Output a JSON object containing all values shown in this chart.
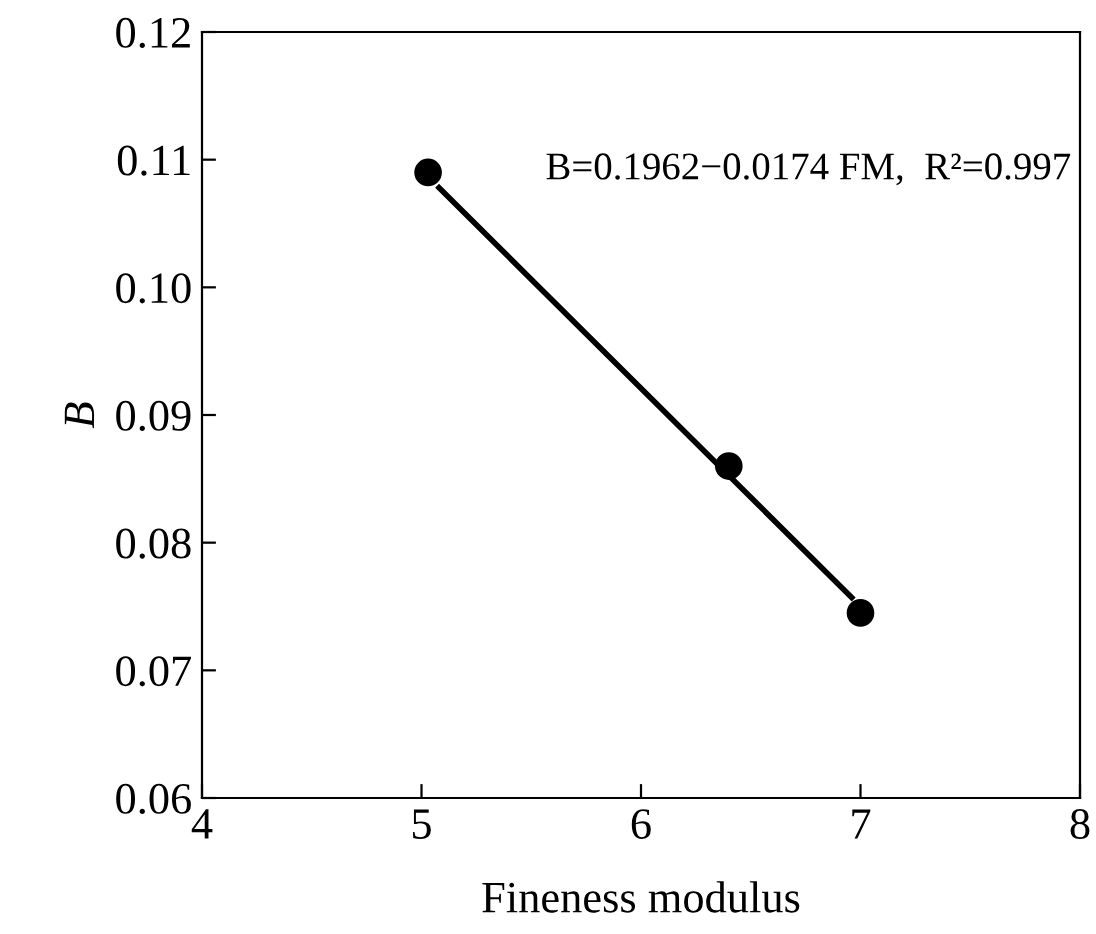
{
  "chart_data": {
    "type": "scatter",
    "xlabel": "Fineness modulus",
    "ylabel": "B",
    "series": [
      {
        "color": "#000000",
        "marker": "circle",
        "x": [
          5.03,
          6.4,
          7.0
        ],
        "values": [
          0.109,
          0.086,
          0.0745
        ]
      },
      {
        "type": "line",
        "color": "#000000",
        "marker": "none",
        "line_style": "solid",
        "x": [
          5.08,
          6.96
        ],
        "values": [
          0.1078,
          0.0757
        ]
      }
    ],
    "annotations": [
      "B=0.1962−0.0174 FM,  R²=0.997"
    ],
    "xlim": [
      4,
      8
    ],
    "xticks": [
      4,
      5,
      6,
      7,
      8
    ],
    "ylim": [
      0.06,
      0.12
    ],
    "yticks": [
      0.06,
      0.07,
      0.08,
      0.09,
      {
        "value": 0.1,
        "label": "0.10"
      },
      0.11,
      0.12
    ],
    "grid": false,
    "legend": false
  }
}
